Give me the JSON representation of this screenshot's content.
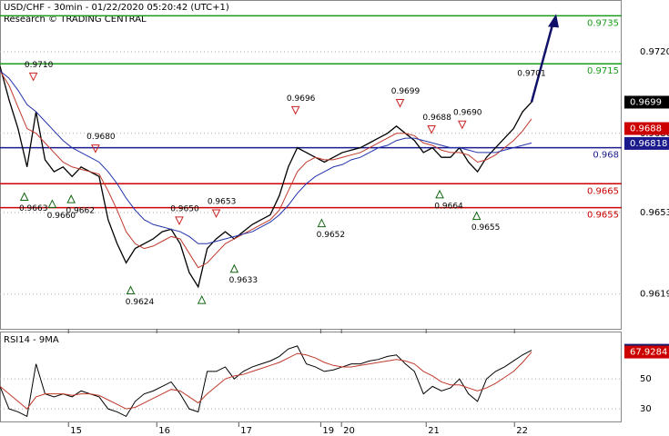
{
  "chart_data": [
    {
      "type": "price",
      "title": "USD/CHF - 30min - 01/22/2020 05:20:42 (UTC+1)",
      "subtitle": "Research © TRADING CENTRAL",
      "xlim": [
        0,
        69
      ],
      "ylim": [
        0.96045,
        0.97416
      ],
      "xticks": [
        {
          "value": 7.6,
          "label": "15"
        },
        {
          "value": 17.4,
          "label": "16"
        },
        {
          "value": 26.5,
          "label": "17"
        },
        {
          "value": 35.6,
          "label": "19"
        },
        {
          "value": 37.9,
          "label": "20"
        },
        {
          "value": 47.3,
          "label": "21"
        },
        {
          "value": 57.1,
          "label": "22"
        }
      ],
      "yticks": [
        {
          "value": 0.972,
          "label": "0.9720"
        },
        0.9686,
        0.9653,
        0.9619
      ],
      "grid": true,
      "series": [
        {
          "color": "#000000",
          "values": [
            0.9714,
            0.97,
            0.9688,
            0.9672,
            0.9695,
            0.9675,
            0.967,
            0.9672,
            0.9668,
            0.9672,
            0.967,
            0.9668,
            0.965,
            0.964,
            0.9632,
            0.9638,
            0.964,
            0.9642,
            0.9645,
            0.9646,
            0.964,
            0.9628,
            0.9622,
            0.9638,
            0.9642,
            0.9645,
            0.9642,
            0.9645,
            0.9648,
            0.965,
            0.9652,
            0.966,
            0.9672,
            0.968,
            0.9678,
            0.9676,
            0.9674,
            0.9676,
            0.9678,
            0.9679,
            0.968,
            0.9682,
            0.9684,
            0.9686,
            0.9689,
            0.9686,
            0.9683,
            0.9678,
            0.968,
            0.9676,
            0.9676,
            0.968,
            0.9674,
            0.967,
            0.9676,
            0.968,
            0.9684,
            0.9688,
            0.9695,
            0.9699
          ]
        },
        {
          "color": "#c0392b",
          "values": [
            0.9712,
            0.9706,
            0.9697,
            0.9688,
            0.9686,
            0.9682,
            0.9678,
            0.9674,
            0.9672,
            0.9671,
            0.967,
            0.9669,
            0.9662,
            0.9654,
            0.9645,
            0.964,
            0.9638,
            0.9639,
            0.9641,
            0.9643,
            0.9642,
            0.9636,
            0.963,
            0.9632,
            0.9636,
            0.964,
            0.9642,
            0.9644,
            0.9646,
            0.9648,
            0.965,
            0.9654,
            0.9662,
            0.967,
            0.9674,
            0.9676,
            0.9675,
            0.9675,
            0.9676,
            0.9677,
            0.9678,
            0.968,
            0.9682,
            0.9684,
            0.9686,
            0.9686,
            0.9685,
            0.9682,
            0.9681,
            0.9679,
            0.9678,
            0.9678,
            0.9677,
            0.9674,
            0.9675,
            0.9677,
            0.968,
            0.9683,
            0.9687,
            0.9692
          ]
        },
        {
          "color": "#2233aa",
          "values": [
            0.9712,
            0.9709,
            0.9704,
            0.9698,
            0.9695,
            0.9691,
            0.9687,
            0.9683,
            0.968,
            0.9678,
            0.9676,
            0.9674,
            0.967,
            0.9665,
            0.9659,
            0.9654,
            0.965,
            0.9648,
            0.9647,
            0.9646,
            0.9645,
            0.9643,
            0.964,
            0.964,
            0.9641,
            0.9642,
            0.9643,
            0.9644,
            0.9645,
            0.9647,
            0.9649,
            0.9652,
            0.9656,
            0.9661,
            0.9665,
            0.9668,
            0.967,
            0.9672,
            0.9673,
            0.9675,
            0.9676,
            0.9678,
            0.968,
            0.9681,
            0.9683,
            0.9684,
            0.9684,
            0.9683,
            0.9682,
            0.9681,
            0.968,
            0.968,
            0.9679,
            0.9678,
            0.9678,
            0.9678,
            0.9679,
            0.968,
            0.9681,
            0.9682
          ]
        }
      ],
      "levels": [
        {
          "value": 0.9735,
          "color": "#1a9c1a"
        },
        {
          "value": 0.9715,
          "color": "#1a9c1a"
        },
        {
          "value": 0.968,
          "color": "#1a1a8c"
        },
        {
          "value": 0.9665,
          "color": "#cc0000"
        },
        {
          "value": 0.9655,
          "color": "#cc0000"
        }
      ],
      "highs": [
        {
          "x": 3.7,
          "value": 0.971,
          "label": "0.9710"
        },
        {
          "x": 10.6,
          "value": 0.968,
          "label": "0.9680"
        },
        {
          "x": 19.9,
          "value": 0.965,
          "label": "0.9650"
        },
        {
          "x": 24.0,
          "value": 0.9653,
          "label": "0.9653"
        },
        {
          "x": 32.8,
          "value": 0.9696,
          "label": "0.9696"
        },
        {
          "x": 44.4,
          "value": 0.9699,
          "label": "0.9699"
        },
        {
          "x": 47.9,
          "value": 0.9688,
          "label": "0.9688"
        },
        {
          "x": 51.3,
          "value": 0.969,
          "label": "0.9690"
        }
      ],
      "lows": [
        {
          "x": 2.7,
          "value": 0.9663,
          "label": "0.9663"
        },
        {
          "x": 5.8,
          "value": 0.966,
          "label": "0.9660"
        },
        {
          "x": 7.9,
          "value": 0.9662,
          "label": "0.9662"
        },
        {
          "x": 14.5,
          "value": 0.9624,
          "label": "0.9624"
        },
        {
          "x": 22.4,
          "value": 0.962
        },
        {
          "x": 26.0,
          "value": 0.9633,
          "label": "0.9633"
        },
        {
          "x": 35.7,
          "value": 0.9652,
          "label": "0.9652"
        },
        {
          "x": 48.8,
          "value": 0.9664,
          "label": "0.9664"
        },
        {
          "x": 52.9,
          "value": 0.9655,
          "label": "0.9655"
        }
      ],
      "target": {
        "value": 0.9701,
        "label": "0.9701"
      },
      "markers": [
        {
          "value": 0.9699,
          "color": "#000000"
        },
        {
          "value": 0.9688,
          "color": "#cc0000"
        },
        {
          "value": 0.96818,
          "color": "#1a1a8c"
        }
      ]
    },
    {
      "type": "rsi",
      "title": "RSI14 - 9MA",
      "xlim": [
        0,
        69
      ],
      "ylim": [
        21,
        81
      ],
      "yticks": [
        30,
        50
      ],
      "grid": true,
      "series": [
        {
          "color": "#000000",
          "values": [
            45,
            30,
            28,
            25,
            60,
            40,
            38,
            40,
            38,
            42,
            40,
            38,
            30,
            28,
            25,
            35,
            40,
            42,
            45,
            48,
            40,
            30,
            28,
            55,
            55,
            58,
            50,
            55,
            58,
            60,
            62,
            65,
            70,
            72,
            60,
            58,
            55,
            56,
            58,
            60,
            60,
            62,
            63,
            65,
            66,
            60,
            55,
            40,
            45,
            42,
            44,
            50,
            40,
            35,
            50,
            55,
            58,
            62,
            66,
            69.12
          ]
        },
        {
          "color": "#c0392b",
          "values": [
            45,
            40,
            35,
            30,
            38,
            40,
            40,
            40,
            39,
            40,
            40,
            39,
            36,
            33,
            30,
            31,
            34,
            37,
            40,
            43,
            42,
            38,
            34,
            40,
            45,
            50,
            52,
            53,
            55,
            57,
            59,
            61,
            64,
            67,
            66,
            64,
            61,
            59,
            58,
            58,
            59,
            60,
            61,
            62,
            63,
            62,
            60,
            55,
            52,
            48,
            46,
            46,
            44,
            42,
            44,
            47,
            51,
            55,
            61,
            67.93
          ]
        }
      ],
      "markers": [
        {
          "value": 69.1236,
          "color": "#1a1a6c"
        },
        {
          "value": 67.9284,
          "color": "#cc0000"
        }
      ]
    }
  ]
}
